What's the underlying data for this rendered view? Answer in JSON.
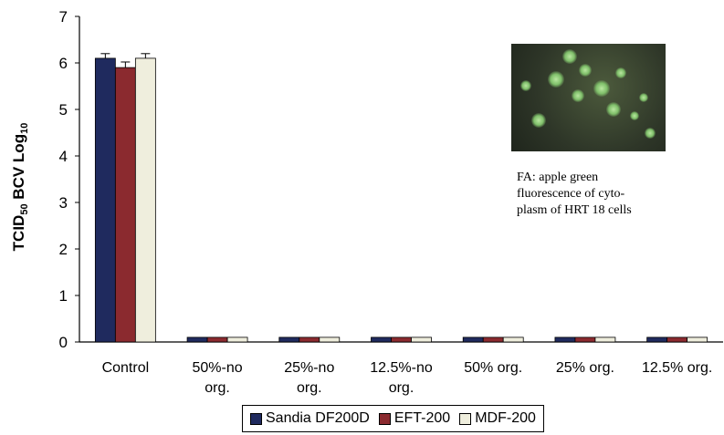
{
  "chart_data": {
    "type": "bar",
    "ylabel": "TCID50 BCV Log10",
    "ylim": [
      0,
      7
    ],
    "yticks": [
      "0",
      "1",
      "2",
      "3",
      "4",
      "5",
      "6",
      "7"
    ],
    "categories": [
      [
        "Control"
      ],
      [
        "50%-no",
        "org."
      ],
      [
        "25%-no",
        "org."
      ],
      [
        "12.5%-no",
        "org."
      ],
      [
        "50% org."
      ],
      [
        "25% org."
      ],
      [
        "12.5% org."
      ]
    ],
    "series": [
      {
        "name": "Sandia DF200D",
        "color": "#1f2a5e",
        "values": [
          6.1,
          0.1,
          0.1,
          0.1,
          0.1,
          0.1,
          0.1
        ]
      },
      {
        "name": "EFT-200",
        "color": "#8b2a2f",
        "values": [
          5.9,
          0.1,
          0.1,
          0.1,
          0.1,
          0.1,
          0.1
        ]
      },
      {
        "name": "MDF-200",
        "color": "#efeedd",
        "values": [
          6.1,
          0.1,
          0.1,
          0.1,
          0.1,
          0.1,
          0.1
        ]
      }
    ],
    "error_bars": [
      [
        0.1,
        0.12,
        0.1
      ],
      null,
      null,
      null,
      null,
      null,
      null
    ],
    "legend_position": "bottom"
  },
  "inset": {
    "caption_lines": [
      "FA: apple green",
      "fluorescence of cyto-",
      "plasm of HRT 18 cells"
    ]
  }
}
